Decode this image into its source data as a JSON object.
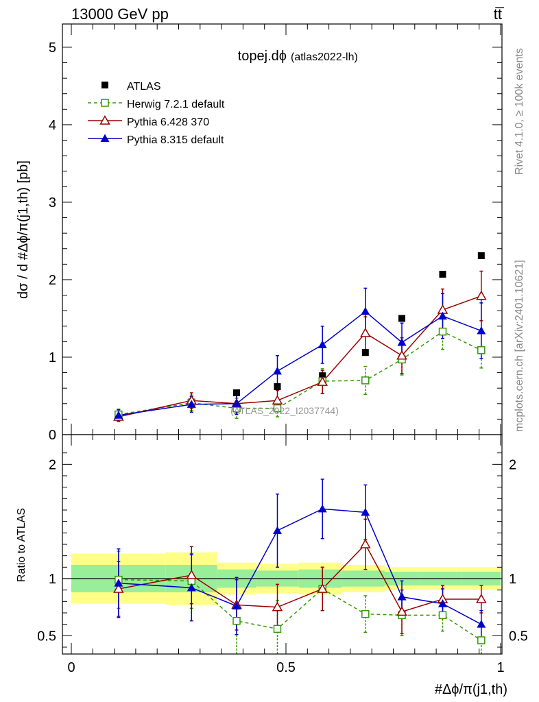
{
  "header": {
    "left": "13000 GeV pp",
    "right": "tt̅"
  },
  "side_labels": {
    "rivet": "Rivet 4.1.0, ≥ 100k events",
    "mcplots": "mcplots.cern.ch [arXiv:2401.10621]"
  },
  "chart_data": {
    "type": "scatter",
    "title": "topej.dϕ",
    "subtitle": "(atlas2022-lh)",
    "watermark": "(ATLAS_2022_I2037744)",
    "xlabel": "#Δϕ/π(j1,th)",
    "ylabel": "dσ / d #Δϕ/π(j1,th) [pb]",
    "ratio_ylabel": "Ratio to ATLAS",
    "xlim": [
      0,
      1
    ],
    "ylim": [
      0,
      5.3
    ],
    "ratio_ylim": [
      0.34,
      2.26
    ],
    "x_ticks": [
      {
        "value": 0,
        "label": "0"
      },
      {
        "value": 0.5,
        "label": "0.5"
      },
      {
        "value": 1,
        "label": "1"
      }
    ],
    "y_ticks": [
      {
        "value": 0,
        "label": "0"
      },
      {
        "value": 1,
        "label": "1"
      },
      {
        "value": 2,
        "label": "2"
      },
      {
        "value": 3,
        "label": "3"
      },
      {
        "value": 4,
        "label": "4"
      },
      {
        "value": 5,
        "label": "5"
      }
    ],
    "ratio_ticks": [
      {
        "value": 0.5,
        "label": "0.5"
      },
      {
        "value": 1,
        "label": "1"
      },
      {
        "value": 2,
        "label": "2"
      }
    ],
    "x": [
      0.11,
      0.28,
      0.385,
      0.48,
      0.585,
      0.685,
      0.77,
      0.865,
      0.955
    ],
    "bin_edges": [
      0,
      0.22,
      0.34,
      0.43,
      0.53,
      0.63,
      0.73,
      0.81,
      0.91,
      1.0
    ],
    "band_inner": [
      0.12,
      0.12,
      0.08,
      0.07,
      0.08,
      0.07,
      0.06,
      0.06,
      0.06
    ],
    "band_outer": [
      0.22,
      0.23,
      0.14,
      0.13,
      0.14,
      0.12,
      0.1,
      0.1,
      0.1
    ],
    "legend": [
      "ATLAS",
      "Herwig 7.2.1 default",
      "Pythia 6.428 370",
      "Pythia 8.315 default"
    ],
    "series": [
      {
        "name": "ATLAS",
        "color": "#000000",
        "marker": "square-filled",
        "values": [
          0.26,
          0.42,
          0.54,
          0.62,
          0.76,
          1.06,
          1.5,
          2.07,
          2.31
        ],
        "errors": [
          0,
          0,
          0,
          0,
          0,
          0,
          0,
          0,
          0
        ]
      },
      {
        "name": "Herwig 7.2.1 default",
        "color": "#339900",
        "marker": "square-open",
        "dashed": true,
        "values": [
          0.26,
          0.41,
          0.34,
          0.34,
          0.69,
          0.7,
          0.97,
          1.33,
          1.09
        ],
        "errors": [
          0.07,
          0.1,
          0.13,
          0.11,
          0.16,
          0.18,
          0.2,
          0.23,
          0.23
        ],
        "ratio": [
          0.99,
          0.98,
          0.63,
          0.56,
          0.91,
          0.69,
          0.68,
          0.68,
          0.46
        ],
        "ratio_errors": [
          0.25,
          0.24,
          0.37,
          0.25,
          0.19,
          0.16,
          0.18,
          0.14,
          0.12
        ]
      },
      {
        "name": "Pythia 6.428 370",
        "color": "#990000",
        "marker": "triangle-open",
        "values": [
          0.23,
          0.44,
          0.4,
          0.44,
          0.68,
          1.31,
          1.02,
          1.61,
          1.79
        ],
        "errors": [
          0.06,
          0.1,
          0.12,
          0.13,
          0.15,
          0.21,
          0.23,
          0.27,
          0.32
        ],
        "ratio": [
          0.91,
          1.03,
          0.77,
          0.75,
          0.91,
          1.3,
          0.71,
          0.82,
          0.82
        ],
        "ratio_errors": [
          0.24,
          0.25,
          0.22,
          0.2,
          0.19,
          0.22,
          0.19,
          0.12,
          0.12
        ]
      },
      {
        "name": "Pythia 8.315 default",
        "color": "#0000cc",
        "marker": "triangle-filled",
        "values": [
          0.25,
          0.39,
          0.4,
          0.82,
          1.16,
          1.59,
          1.19,
          1.53,
          1.34
        ],
        "errors": [
          0.07,
          0.1,
          0.14,
          0.2,
          0.24,
          0.3,
          0.25,
          0.29,
          0.36
        ],
        "ratio": [
          0.96,
          0.92,
          0.76,
          1.42,
          1.61,
          1.58,
          0.84,
          0.78,
          0.6
        ],
        "ratio_errors": [
          0.3,
          0.29,
          0.25,
          0.32,
          0.26,
          0.24,
          0.14,
          0.13,
          0.12
        ]
      }
    ]
  }
}
